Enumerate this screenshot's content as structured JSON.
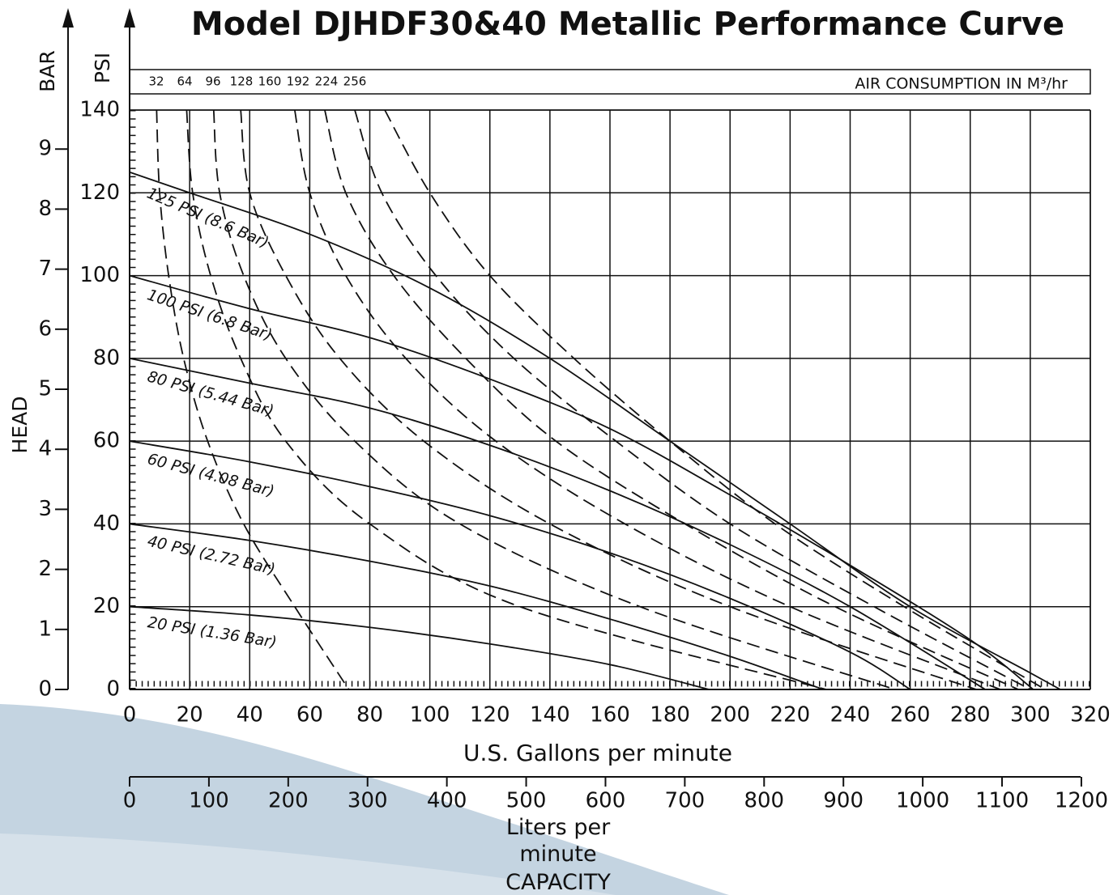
{
  "chart_data": {
    "type": "line",
    "title": "Model DJHDF30&40 Metallic Performance Curve",
    "xlabel": "U.S. Gallons per minute",
    "ylabel": "PSI",
    "y2label": "BAR",
    "head_label": "HEAD",
    "x2label": "Liters per minute",
    "capacity_label": "CAPACITY",
    "air_label": "AIR CONSUMPTION IN M³/hr",
    "xlim": [
      0,
      320
    ],
    "xticks": [
      0,
      20,
      40,
      60,
      80,
      100,
      120,
      140,
      160,
      180,
      200,
      220,
      240,
      260,
      280,
      300,
      320
    ],
    "ylim": [
      0,
      140
    ],
    "yticks": [
      0,
      20,
      40,
      60,
      80,
      100,
      120,
      140
    ],
    "y2lim": [
      0,
      9.65
    ],
    "y2ticks": [
      0,
      1,
      2,
      3,
      4,
      5,
      6,
      7,
      8,
      9
    ],
    "x2lim": [
      0,
      1211.3
    ],
    "x2ticks": [
      0,
      100,
      200,
      300,
      400,
      500,
      600,
      700,
      800,
      900,
      1000,
      1100,
      1200
    ],
    "grid": true,
    "series": [
      {
        "name": "125 PSI (8.6 Bar)",
        "style": "solid",
        "color": "#111111",
        "x": [
          0,
          20,
          60,
          100,
          140,
          180,
          220,
          260,
          300,
          310
        ],
        "values": [
          125,
          120,
          110,
          97,
          80,
          60,
          40,
          20,
          4,
          0
        ]
      },
      {
        "name": "100 PSI (6.8 Bar)",
        "style": "solid",
        "color": "#111111",
        "x": [
          0,
          40,
          80,
          120,
          160,
          200,
          240,
          280,
          301
        ],
        "values": [
          100,
          92,
          85,
          75,
          63,
          47,
          30,
          12,
          0
        ]
      },
      {
        "name": "80 PSI (5.44 Bar)",
        "style": "solid",
        "color": "#111111",
        "x": [
          0,
          40,
          80,
          120,
          160,
          200,
          240,
          285
        ],
        "values": [
          80,
          74,
          68,
          59,
          48,
          35,
          20,
          0
        ]
      },
      {
        "name": "60 PSI (4.08 Bar)",
        "style": "solid",
        "color": "#111111",
        "x": [
          0,
          40,
          80,
          120,
          160,
          200,
          240,
          260
        ],
        "values": [
          60,
          55,
          49,
          42,
          33,
          22,
          9,
          0
        ]
      },
      {
        "name": "40 PSI (2.72 Bar)",
        "style": "solid",
        "color": "#111111",
        "x": [
          0,
          40,
          80,
          120,
          160,
          200,
          231
        ],
        "values": [
          40,
          36,
          31,
          25,
          17,
          8,
          0
        ]
      },
      {
        "name": "20 PSI (1.36 Bar)",
        "style": "solid",
        "color": "#111111",
        "x": [
          0,
          40,
          80,
          120,
          160,
          193
        ],
        "values": [
          20,
          18,
          15,
          11,
          6,
          0
        ]
      },
      {
        "name": "32",
        "style": "dashed",
        "color": "#111111",
        "x": [
          9,
          10,
          13,
          18,
          26,
          38,
          55,
          73
        ],
        "values": [
          140,
          120,
          100,
          80,
          60,
          40,
          20,
          0
        ]
      },
      {
        "name": "64",
        "style": "dashed",
        "color": "#111111",
        "x": [
          19,
          21,
          27,
          37,
          52,
          80,
          130,
          232
        ],
        "values": [
          140,
          120,
          100,
          80,
          60,
          40,
          20,
          0
        ]
      },
      {
        "name": "96",
        "style": "dashed",
        "color": "#111111",
        "x": [
          28,
          30,
          38,
          52,
          75,
          110,
          170,
          255
        ],
        "values": [
          140,
          120,
          100,
          80,
          60,
          40,
          20,
          0
        ]
      },
      {
        "name": "128",
        "style": "dashed",
        "color": "#111111",
        "x": [
          37,
          40,
          52,
          70,
          98,
          140,
          200,
          282
        ],
        "values": [
          140,
          120,
          100,
          80,
          60,
          40,
          20,
          0
        ]
      },
      {
        "name": "160",
        "style": "dashed",
        "color": "#111111",
        "x": [
          55,
          60,
          72,
          92,
          122,
          165,
          220,
          290
        ],
        "values": [
          140,
          120,
          100,
          80,
          60,
          40,
          20,
          0
        ]
      },
      {
        "name": "192",
        "style": "dashed",
        "color": "#111111",
        "x": [
          65,
          72,
          88,
          112,
          142,
          185,
          235,
          296
        ],
        "values": [
          140,
          120,
          100,
          80,
          60,
          40,
          20,
          0
        ]
      },
      {
        "name": "224",
        "style": "dashed",
        "color": "#111111",
        "x": [
          75,
          84,
          102,
          128,
          162,
          200,
          248,
          300
        ],
        "values": [
          140,
          120,
          100,
          80,
          60,
          40,
          20,
          0
        ]
      },
      {
        "name": "256",
        "style": "dashed",
        "color": "#111111",
        "x": [
          85,
          100,
          120,
          148,
          180,
          215,
          258,
          305
        ],
        "values": [
          140,
          120,
          100,
          80,
          60,
          40,
          20,
          0
        ]
      }
    ]
  }
}
